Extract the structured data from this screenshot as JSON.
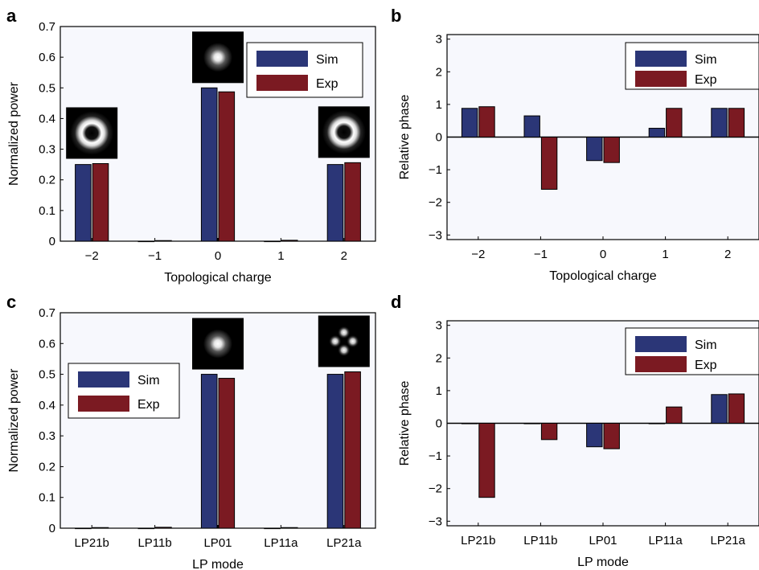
{
  "colors": {
    "sim": "#2b3677",
    "exp": "#7b1a22",
    "plot_bg": "#f7f8fd"
  },
  "chart_data": [
    {
      "panel": "a",
      "type": "bar",
      "categories": [
        "−2",
        "−1",
        "0",
        "1",
        "2"
      ],
      "series": [
        {
          "name": "Sim",
          "values": [
            0.25,
            0.0,
            0.5,
            0.0,
            0.25
          ]
        },
        {
          "name": "Exp",
          "values": [
            0.253,
            0.002,
            0.487,
            0.003,
            0.256
          ]
        }
      ],
      "xlabel": "Topological charge",
      "ylabel": "Normalized power",
      "ylim": [
        0,
        0.7
      ],
      "yticks": [
        "0",
        "0.1",
        "0.2",
        "0.3",
        "0.4",
        "0.5",
        "0.6",
        "0.7"
      ],
      "legend": {
        "placement": "top-right",
        "entries": [
          "Sim",
          "Exp"
        ]
      },
      "insets": [
        {
          "category_index": 0,
          "pattern": "ring-mode-icon"
        },
        {
          "category_index": 2,
          "pattern": "gaussian-spot-icon"
        },
        {
          "category_index": 4,
          "pattern": "ring-mode-icon"
        }
      ]
    },
    {
      "panel": "b",
      "type": "bar",
      "categories": [
        "−2",
        "−1",
        "0",
        "1",
        "2"
      ],
      "series": [
        {
          "name": "Sim",
          "values": [
            0.88,
            0.65,
            -0.72,
            0.27,
            0.88
          ]
        },
        {
          "name": "Exp",
          "values": [
            0.93,
            -1.6,
            -0.78,
            0.88,
            0.88
          ]
        }
      ],
      "xlabel": "Topological charge",
      "ylabel": "Relative phase",
      "ylim": [
        -3.14,
        3.14
      ],
      "yticks": [
        "3",
        "2",
        "1",
        "0",
        "−1",
        "−2",
        "−3"
      ],
      "legend": {
        "placement": "top-right",
        "entries": [
          "Sim",
          "Exp"
        ]
      }
    },
    {
      "panel": "c",
      "type": "bar",
      "categories": [
        "LP21b",
        "LP11b",
        "LP01",
        "LP11a",
        "LP21a"
      ],
      "series": [
        {
          "name": "Sim",
          "values": [
            0.0,
            0.0,
            0.5,
            0.0,
            0.5
          ]
        },
        {
          "name": "Exp",
          "values": [
            0.002,
            0.003,
            0.487,
            0.002,
            0.508
          ]
        }
      ],
      "xlabel": "LP mode",
      "ylabel": "Normalized power",
      "ylim": [
        0,
        0.7
      ],
      "yticks": [
        "0",
        "0.1",
        "0.2",
        "0.3",
        "0.4",
        "0.5",
        "0.6",
        "0.7"
      ],
      "legend": {
        "placement": "left",
        "entries": [
          "Sim",
          "Exp"
        ]
      },
      "insets": [
        {
          "category_index": 2,
          "pattern": "gaussian-spot-icon"
        },
        {
          "category_index": 4,
          "pattern": "four-lobe-mode-icon"
        }
      ]
    },
    {
      "panel": "d",
      "type": "bar",
      "categories": [
        "LP21b",
        "LP11b",
        "LP01",
        "LP11a",
        "LP21a"
      ],
      "series": [
        {
          "name": "Sim",
          "values": [
            0.0,
            0.0,
            -0.72,
            0.0,
            0.88
          ]
        },
        {
          "name": "Exp",
          "values": [
            -2.27,
            -0.5,
            -0.78,
            0.5,
            0.9
          ]
        }
      ],
      "xlabel": "LP mode",
      "ylabel": "Relative phase",
      "ylim": [
        -3.14,
        3.14
      ],
      "yticks": [
        "3",
        "2",
        "1",
        "0",
        "−1",
        "−2",
        "−3"
      ],
      "legend": {
        "placement": "top-right",
        "entries": [
          "Sim",
          "Exp"
        ]
      }
    }
  ]
}
